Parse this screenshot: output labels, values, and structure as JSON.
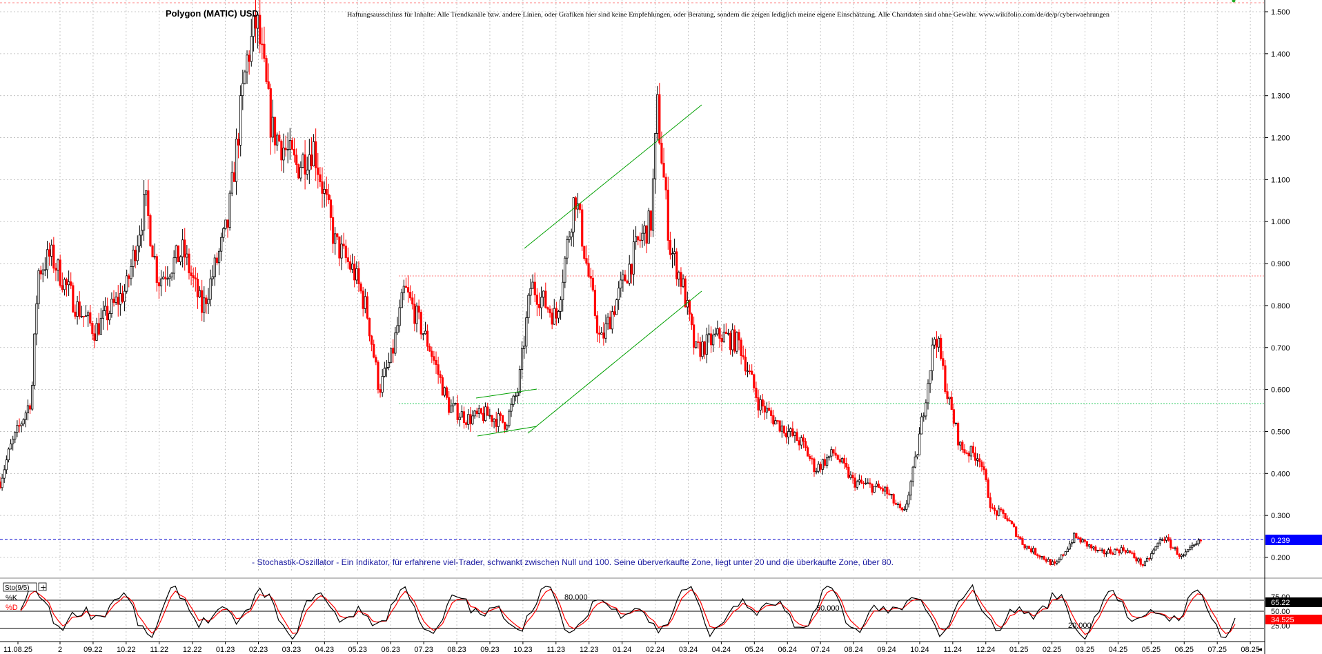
{
  "header": {
    "title": "Polygon (MATIC) USD",
    "disclaimer": "Haftungsausschluss für Inhalte: Alle Trendkanäle bzw. andere Linien, oder Grafiken hier sind keine Empfehlungen, oder Beratung, sondern die zeigen lediglich meine eigene Einschätzung. Alle Chartdaten sind ohne Gewähr. www.wikifolio.com/de/de/p/cyberwaehrungen"
  },
  "indicator": {
    "note": "- Stochastik-Oszillator - Ein Indikator, für erfahrene viel-Trader, schwankt zwischen Null und 100. Seine überverkaufte Zone, liegt unter 20 und die überkaufte Zone, über 80.",
    "panel_label": "Sto(9/5)",
    "k_label": "%K",
    "d_label": "%D",
    "k_value": "65.22",
    "d_value": "34.525",
    "levels": [
      {
        "value": 80,
        "label": "80.000",
        "axis": "75.00"
      },
      {
        "value": 50,
        "label": "50.000",
        "axis": "50.00"
      },
      {
        "value": 20,
        "label": "20.000",
        "axis": "25.00"
      }
    ]
  },
  "colors": {
    "up": "#000000",
    "down": "#ff0000",
    "grid": "#b8b8b8",
    "channel": "#00a000",
    "price_line": "#0000cc",
    "price_badge_bg": "#0000ff",
    "resistance": "#ff8080",
    "support": "#33cc66",
    "k_line": "#000000",
    "d_line": "#ff0000",
    "note_text": "#1a1aa0"
  },
  "chart_data": {
    "type": "candlestick",
    "title": "Polygon (MATIC) USD",
    "ylim": [
      0.15,
      1.53
    ],
    "y_ticks": [
      "1.500",
      "1.400",
      "1.300",
      "1.200",
      "1.100",
      "1.000",
      "0.900",
      "0.800",
      "0.700",
      "0.600",
      "0.500",
      "0.400",
      "0.300",
      "0.200"
    ],
    "x_ticks": [
      "11.08.25",
      "2",
      "09.22",
      "10.22",
      "11.22",
      "12.22",
      "01.23",
      "02.23",
      "03.23",
      "04.23",
      "05.23",
      "06.23",
      "07.23",
      "08.23",
      "09.23",
      "10.23",
      "11.23",
      "12.23",
      "01.24",
      "02.24",
      "03.24",
      "04.24",
      "05.24",
      "06.24",
      "07.24",
      "08.24",
      "09.24",
      "10.24",
      "11.24",
      "12.24",
      "01.25",
      "02.25",
      "03.25",
      "04.25",
      "05.25",
      "06.25",
      "07.25",
      "08.25"
    ],
    "last_price": "0.239",
    "horizontal_levels": {
      "last": 0.239,
      "resistance": 0.868,
      "support": 0.566
    },
    "anchors": [
      [
        0,
        0.38
      ],
      [
        0.008,
        0.46
      ],
      [
        0.018,
        0.53
      ],
      [
        0.025,
        0.58
      ],
      [
        0.03,
        0.88
      ],
      [
        0.04,
        0.92
      ],
      [
        0.06,
        0.8
      ],
      [
        0.075,
        0.74
      ],
      [
        0.1,
        0.84
      ],
      [
        0.115,
        1.05
      ],
      [
        0.125,
        0.86
      ],
      [
        0.145,
        0.93
      ],
      [
        0.16,
        0.79
      ],
      [
        0.18,
        0.99
      ],
      [
        0.195,
        1.38
      ],
      [
        0.203,
        1.48
      ],
      [
        0.215,
        1.22
      ],
      [
        0.235,
        1.13
      ],
      [
        0.248,
        1.18
      ],
      [
        0.265,
        0.95
      ],
      [
        0.28,
        0.88
      ],
      [
        0.29,
        0.79
      ],
      [
        0.3,
        0.6
      ],
      [
        0.31,
        0.68
      ],
      [
        0.32,
        0.84
      ],
      [
        0.34,
        0.7
      ],
      [
        0.355,
        0.56
      ],
      [
        0.37,
        0.53
      ],
      [
        0.385,
        0.54
      ],
      [
        0.4,
        0.52
      ],
      [
        0.41,
        0.6
      ],
      [
        0.42,
        0.85
      ],
      [
        0.44,
        0.77
      ],
      [
        0.455,
        1.07
      ],
      [
        0.465,
        0.88
      ],
      [
        0.475,
        0.71
      ],
      [
        0.49,
        0.83
      ],
      [
        0.505,
        0.95
      ],
      [
        0.515,
        1.0
      ],
      [
        0.52,
        1.27
      ],
      [
        0.53,
        0.94
      ],
      [
        0.54,
        0.85
      ],
      [
        0.55,
        0.69
      ],
      [
        0.57,
        0.73
      ],
      [
        0.585,
        0.71
      ],
      [
        0.6,
        0.57
      ],
      [
        0.615,
        0.52
      ],
      [
        0.635,
        0.47
      ],
      [
        0.645,
        0.41
      ],
      [
        0.66,
        0.45
      ],
      [
        0.675,
        0.38
      ],
      [
        0.7,
        0.36
      ],
      [
        0.715,
        0.3
      ],
      [
        0.725,
        0.44
      ],
      [
        0.74,
        0.74
      ],
      [
        0.75,
        0.58
      ],
      [
        0.76,
        0.46
      ],
      [
        0.775,
        0.44
      ],
      [
        0.785,
        0.31
      ],
      [
        0.795,
        0.3
      ],
      [
        0.81,
        0.23
      ],
      [
        0.835,
        0.18
      ],
      [
        0.85,
        0.25
      ],
      [
        0.87,
        0.21
      ],
      [
        0.89,
        0.22
      ],
      [
        0.905,
        0.18
      ],
      [
        0.92,
        0.25
      ],
      [
        0.935,
        0.2
      ],
      [
        0.95,
        0.239
      ]
    ],
    "stochastic": {
      "k": 65.22,
      "d": 34.525,
      "levels": [
        80,
        50,
        20
      ]
    }
  }
}
